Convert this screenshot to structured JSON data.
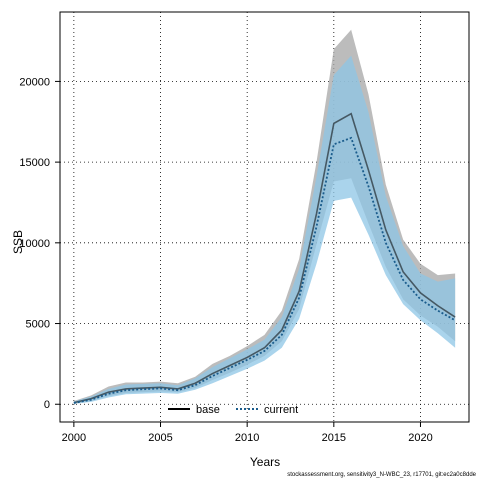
{
  "chart_data": {
    "type": "line",
    "xlabel": "Years",
    "ylabel": "SSB",
    "xlim": [
      1999.2,
      2022.8
    ],
    "ylim": [
      -1100,
      24300
    ],
    "x_ticks": [
      2000,
      2005,
      2010,
      2015,
      2020
    ],
    "y_ticks": [
      0,
      5000,
      10000,
      15000,
      20000
    ],
    "grid": true,
    "legend_position": "bottom-center",
    "x": [
      2000,
      2001,
      2002,
      2003,
      2004,
      2005,
      2006,
      2007,
      2008,
      2009,
      2010,
      2011,
      2012,
      2013,
      2014,
      2015,
      2016,
      2017,
      2018,
      2019,
      2020,
      2021,
      2022
    ],
    "series": [
      {
        "name": "base",
        "color": "#000000",
        "band_color": "#a6a6a6",
        "line_style": "solid",
        "values": [
          100,
          350,
          750,
          950,
          1000,
          1050,
          950,
          1300,
          1900,
          2400,
          2900,
          3500,
          4600,
          7000,
          11800,
          17400,
          18000,
          14500,
          10800,
          8200,
          6900,
          6100,
          5400
        ],
        "lower": [
          30,
          200,
          500,
          700,
          750,
          800,
          750,
          1000,
          1500,
          1950,
          2450,
          3000,
          3900,
          5900,
          9900,
          13800,
          14000,
          11200,
          8500,
          6500,
          5500,
          4800,
          3900
        ],
        "upper": [
          200,
          550,
          1100,
          1350,
          1350,
          1400,
          1300,
          1700,
          2500,
          3000,
          3600,
          4300,
          5800,
          9000,
          15000,
          22000,
          23200,
          19200,
          13600,
          10200,
          8700,
          8000,
          8100
        ]
      },
      {
        "name": "current",
        "color": "#1a5c8c",
        "band_color": "#8ec6e6",
        "line_style": "dotted",
        "values": [
          80,
          280,
          650,
          870,
          930,
          980,
          870,
          1180,
          1750,
          2250,
          2750,
          3300,
          4300,
          6600,
          11000,
          16100,
          16500,
          13500,
          10000,
          7700,
          6500,
          5800,
          5200
        ],
        "lower": [
          20,
          150,
          420,
          620,
          660,
          700,
          650,
          900,
          1300,
          1750,
          2200,
          2700,
          3500,
          5300,
          8700,
          12600,
          12800,
          10500,
          8000,
          6200,
          5200,
          4400,
          3500
        ],
        "upper": [
          180,
          480,
          950,
          1220,
          1260,
          1300,
          1180,
          1600,
          2300,
          2850,
          3400,
          4000,
          5400,
          8400,
          14100,
          20400,
          21600,
          18100,
          12900,
          9800,
          8100,
          7600,
          7800
        ]
      }
    ]
  },
  "footer": "stockassessment.org, sensitivity3_N-WBC_23, r17701, git:ec2a0c8dde"
}
